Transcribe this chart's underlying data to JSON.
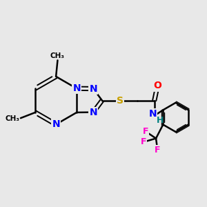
{
  "background_color": "#e8e8e8",
  "atom_colors": {
    "N": "#0000ff",
    "O": "#ff0000",
    "S": "#c8a000",
    "F": "#ff00cc",
    "H": "#008080",
    "C": "#000000"
  },
  "bond_color": "#000000",
  "bond_width": 1.8,
  "font_size_atom": 10,
  "figsize": [
    3.0,
    3.0
  ],
  "dpi": 100
}
